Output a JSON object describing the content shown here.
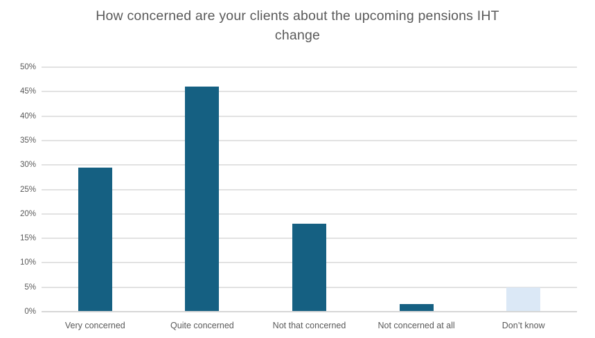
{
  "chart_data": {
    "type": "bar",
    "title": "How concerned are your clients about the upcoming pensions IHT change",
    "title_lines": [
      "How concerned are your clients about the upcoming pensions IHT",
      "change"
    ],
    "categories": [
      "Very concerned",
      "Quite concerned",
      "Not that concerned",
      "Not concerned at all",
      "Don’t know"
    ],
    "values": [
      29.5,
      46,
      18,
      1.5,
      5
    ],
    "bar_colors": [
      "#156082",
      "#156082",
      "#156082",
      "#156082",
      "#dbe8f6"
    ],
    "xlabel": "",
    "ylabel": "",
    "ylim": [
      0,
      50
    ],
    "ytick_step": 5,
    "ytick_labels": [
      "0%",
      "5%",
      "10%",
      "15%",
      "20%",
      "25%",
      "30%",
      "35%",
      "40%",
      "45%",
      "50%"
    ],
    "grid": true,
    "legend": false,
    "colors": {
      "title_text": "#595959",
      "axis_text": "#595959",
      "gridline": "#e2e2e2",
      "baseline": "#d6d6d6",
      "bar_primary": "#156082",
      "bar_light": "#dbe8f6",
      "background": "#ffffff"
    }
  }
}
